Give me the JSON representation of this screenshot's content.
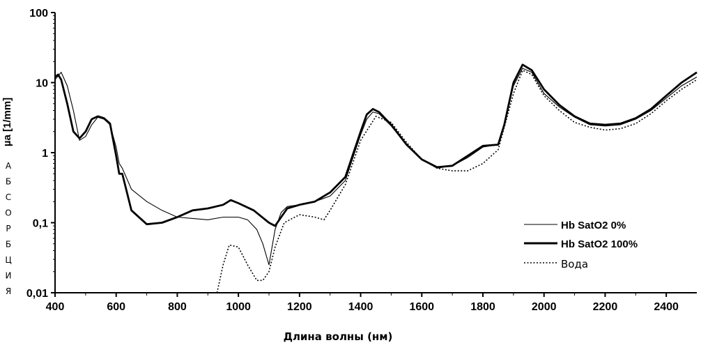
{
  "chart_data": {
    "type": "line",
    "xlabel": "Длина волны (нм)",
    "ylabel": "µa [1/mm]",
    "ylabel_vertical_letters": [
      "А",
      "Б",
      "С",
      "О",
      "Р",
      "Б",
      "Ц",
      "И",
      "Я"
    ],
    "xlim": [
      400,
      2500
    ],
    "ylim": [
      0.01,
      100
    ],
    "yscale": "log",
    "grid": false,
    "legend_position": "lower-right",
    "x_ticks": [
      "400",
      "600",
      "800",
      "1000",
      "1200",
      "1400",
      "1600",
      "1800",
      "2000",
      "2200",
      "2400"
    ],
    "y_ticks": [
      "0,01",
      "0,1",
      "1",
      "10",
      "100"
    ],
    "series": [
      {
        "name": "Hb SatO2 0%",
        "style": "thin",
        "x": [
          400,
          420,
          440,
          460,
          480,
          500,
          520,
          540,
          560,
          580,
          600,
          610,
          620,
          650,
          700,
          750,
          800,
          850,
          900,
          950,
          1000,
          1030,
          1060,
          1080,
          1100,
          1120,
          1140,
          1160,
          1200,
          1250,
          1300,
          1350,
          1400,
          1420,
          1440,
          1460,
          1500,
          1550,
          1600,
          1650,
          1700,
          1750,
          1800,
          1850,
          1870,
          1900,
          1930,
          1960,
          2000,
          2050,
          2100,
          2150,
          2200,
          2250,
          2300,
          2350,
          2400,
          2450,
          2500
        ],
        "y": [
          11,
          14,
          9,
          4,
          1.5,
          1.7,
          2.5,
          3.2,
          3,
          2.5,
          1.2,
          0.7,
          0.6,
          0.3,
          0.2,
          0.15,
          0.12,
          0.115,
          0.11,
          0.12,
          0.12,
          0.11,
          0.08,
          0.05,
          0.025,
          0.08,
          0.14,
          0.17,
          0.18,
          0.2,
          0.24,
          0.4,
          1.8,
          3,
          3.8,
          3.6,
          2.4,
          1.3,
          0.8,
          0.6,
          0.65,
          0.85,
          1.2,
          1.3,
          2.5,
          9,
          16,
          14,
          7,
          4.5,
          3.2,
          2.5,
          2.4,
          2.5,
          3,
          4,
          6,
          9,
          12
        ]
      },
      {
        "name": "Hb SatO2 100%",
        "style": "thick",
        "x": [
          400,
          410,
          420,
          440,
          460,
          480,
          500,
          520,
          540,
          560,
          580,
          600,
          610,
          620,
          650,
          700,
          750,
          800,
          850,
          900,
          950,
          975,
          1000,
          1050,
          1100,
          1120,
          1140,
          1160,
          1200,
          1250,
          1300,
          1350,
          1400,
          1420,
          1440,
          1460,
          1500,
          1550,
          1600,
          1650,
          1700,
          1750,
          1800,
          1850,
          1870,
          1900,
          1930,
          1960,
          2000,
          2050,
          2100,
          2150,
          2200,
          2250,
          2300,
          2350,
          2400,
          2450,
          2500
        ],
        "y": [
          12,
          13,
          11,
          5,
          2,
          1.6,
          2,
          3,
          3.3,
          3.1,
          2.6,
          0.9,
          0.5,
          0.5,
          0.15,
          0.095,
          0.1,
          0.12,
          0.15,
          0.16,
          0.18,
          0.21,
          0.19,
          0.15,
          0.1,
          0.09,
          0.12,
          0.16,
          0.18,
          0.2,
          0.27,
          0.45,
          2,
          3.5,
          4.2,
          3.8,
          2.5,
          1.3,
          0.8,
          0.62,
          0.65,
          0.9,
          1.25,
          1.3,
          2.5,
          10,
          18,
          15,
          8,
          4.8,
          3.3,
          2.6,
          2.5,
          2.6,
          3.1,
          4.2,
          6.5,
          10,
          14
        ]
      },
      {
        "name": "Вода",
        "style": "dotted",
        "x": [
          930,
          950,
          970,
          1000,
          1030,
          1060,
          1080,
          1100,
          1120,
          1150,
          1200,
          1250,
          1280,
          1300,
          1350,
          1400,
          1450,
          1500,
          1550,
          1600,
          1650,
          1700,
          1750,
          1800,
          1850,
          1900,
          1930,
          1960,
          2000,
          2050,
          2100,
          2150,
          2200,
          2250,
          2300,
          2350,
          2400,
          2450,
          2500
        ],
        "y": [
          0.01,
          0.025,
          0.048,
          0.045,
          0.025,
          0.015,
          0.015,
          0.02,
          0.045,
          0.1,
          0.13,
          0.12,
          0.11,
          0.15,
          0.35,
          1.5,
          3.3,
          2.7,
          1.4,
          0.8,
          0.6,
          0.55,
          0.55,
          0.7,
          1.1,
          7,
          15,
          13,
          6.5,
          4,
          2.7,
          2.3,
          2.1,
          2.2,
          2.6,
          3.6,
          5.5,
          8,
          11
        ]
      }
    ]
  }
}
